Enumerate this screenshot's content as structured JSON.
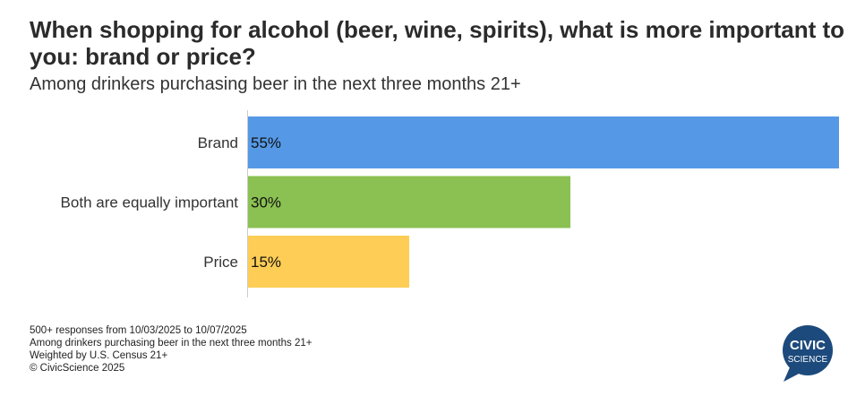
{
  "chart_data": {
    "type": "bar",
    "orientation": "horizontal",
    "title": "When shopping for alcohol (beer, wine, spirits), what is more important to you: brand or price?",
    "subtitle": "Among drinkers purchasing beer in the next three months 21+",
    "categories": [
      "Brand",
      "Both are equally important",
      "Price"
    ],
    "values": [
      55,
      30,
      15
    ],
    "value_labels": [
      "55%",
      "30%",
      "15%"
    ],
    "colors": [
      "#5599e6",
      "#8bc152",
      "#fdcd55"
    ],
    "xlim": [
      0,
      55
    ],
    "grid": false
  },
  "footer": {
    "lines": [
      "500+ responses from 10/03/2025 to 10/07/2025",
      "Among drinkers purchasing beer in the next three months 21+",
      "Weighted by U.S. Census 21+",
      "© CivicScience 2025"
    ]
  },
  "logo": {
    "line1": "CIVIC",
    "line2": "SCIENCE",
    "color": "#1d4a7c"
  }
}
